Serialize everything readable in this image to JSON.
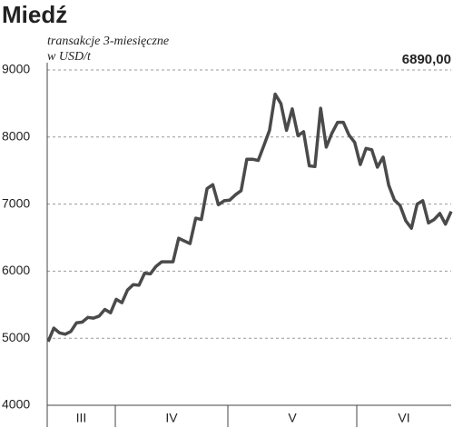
{
  "chart_data": {
    "type": "line",
    "title": "Miedź",
    "subtitle": "transakcje 3-miesięczne",
    "unit_label": "w USD/t",
    "last_value_label": "6890,00",
    "period_labels": [
      "III",
      "IV",
      "V",
      "VI"
    ],
    "color": "#4a4a4a",
    "ylim": [
      4000,
      9000
    ],
    "yticks": [
      4000,
      5000,
      6000,
      7000,
      8000,
      9000
    ],
    "grid": true,
    "values": [
      4950,
      5150,
      5080,
      5060,
      5100,
      5230,
      5240,
      5310,
      5300,
      5330,
      5430,
      5380,
      5580,
      5530,
      5720,
      5800,
      5790,
      5970,
      5960,
      6070,
      6140,
      6140,
      6140,
      6490,
      6450,
      6410,
      6790,
      6770,
      7230,
      7290,
      6990,
      7050,
      7060,
      7140,
      7200,
      7670,
      7670,
      7650,
      7870,
      8100,
      8640,
      8500,
      8100,
      8420,
      8020,
      8080,
      7570,
      7560,
      8430,
      7850,
      8060,
      8220,
      8220,
      8030,
      7920,
      7590,
      7830,
      7810,
      7550,
      7700,
      7280,
      7060,
      6980,
      6750,
      6640,
      7000,
      7050,
      6720,
      6770,
      6860,
      6700,
      6890
    ]
  }
}
